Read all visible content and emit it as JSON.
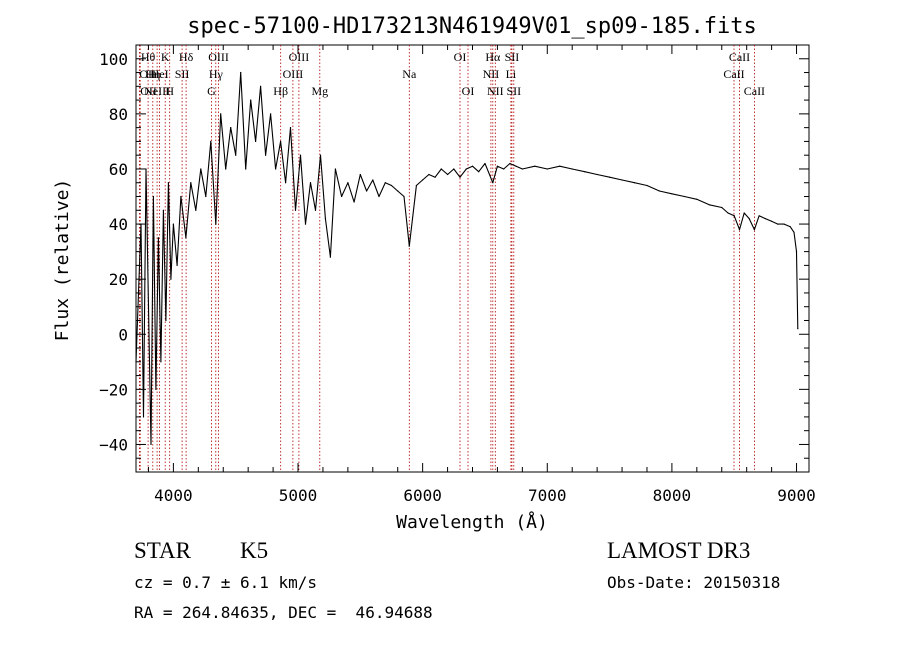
{
  "chart_data": {
    "type": "line",
    "title": "spec-57100-HD173213N461949V01_sp09-185.fits",
    "xlabel": "Wavelength (Å)",
    "ylabel": "Flux (relative)",
    "xlim": [
      3700,
      9100
    ],
    "ylim": [
      -50,
      105
    ],
    "xticks": [
      {
        "value": 4000,
        "label": "4000"
      },
      {
        "value": 5000,
        "label": "5000"
      },
      {
        "value": 6000,
        "label": "6000"
      },
      {
        "value": 7000,
        "label": "7000"
      },
      {
        "value": 8000,
        "label": "8000"
      },
      {
        "value": 9000,
        "label": "9000"
      }
    ],
    "yticks": [
      {
        "value": -40,
        "label": "−40"
      },
      {
        "value": -20,
        "label": "−20"
      },
      {
        "value": 0,
        "label": "0"
      },
      {
        "value": 20,
        "label": "20"
      },
      {
        "value": 40,
        "label": "40"
      },
      {
        "value": 60,
        "label": "60"
      },
      {
        "value": 80,
        "label": "80"
      },
      {
        "value": 100,
        "label": "100"
      }
    ],
    "series": [
      {
        "name": "flux",
        "x": [
          3700,
          3720,
          3740,
          3760,
          3780,
          3800,
          3820,
          3840,
          3860,
          3880,
          3900,
          3920,
          3940,
          3960,
          3980,
          4000,
          4030,
          4060,
          4100,
          4140,
          4180,
          4220,
          4260,
          4300,
          4340,
          4380,
          4420,
          4460,
          4500,
          4540,
          4580,
          4620,
          4660,
          4700,
          4740,
          4780,
          4820,
          4860,
          4900,
          4940,
          4980,
          5020,
          5060,
          5100,
          5140,
          5180,
          5220,
          5260,
          5300,
          5350,
          5400,
          5450,
          5500,
          5550,
          5600,
          5650,
          5700,
          5750,
          5800,
          5850,
          5893,
          5950,
          6000,
          6050,
          6100,
          6150,
          6200,
          6250,
          6300,
          6350,
          6400,
          6450,
          6500,
          6563,
          6600,
          6650,
          6700,
          6750,
          6800,
          6900,
          7000,
          7100,
          7200,
          7300,
          7400,
          7500,
          7600,
          7700,
          7800,
          7900,
          8000,
          8100,
          8200,
          8300,
          8400,
          8450,
          8500,
          8542,
          8580,
          8620,
          8662,
          8700,
          8750,
          8800,
          8850,
          8900,
          8950,
          8980,
          9000,
          9010
        ],
        "y": [
          -10,
          15,
          40,
          -30,
          60,
          10,
          -40,
          50,
          -20,
          35,
          -10,
          45,
          5,
          55,
          20,
          40,
          25,
          50,
          35,
          55,
          45,
          60,
          50,
          70,
          40,
          80,
          60,
          75,
          65,
          95,
          60,
          85,
          70,
          90,
          65,
          80,
          60,
          70,
          55,
          75,
          45,
          65,
          40,
          55,
          45,
          65,
          42,
          28,
          60,
          50,
          55,
          48,
          58,
          52,
          56,
          50,
          55,
          54,
          52,
          50,
          32,
          54,
          56,
          58,
          57,
          60,
          58,
          60,
          57,
          60,
          61,
          59,
          62,
          55,
          61,
          60,
          62,
          61,
          60,
          61,
          60,
          61,
          60,
          59,
          58,
          57,
          56,
          55,
          54,
          52,
          51,
          50,
          49,
          47,
          46,
          44,
          43,
          38,
          44,
          42,
          38,
          43,
          42,
          41,
          40,
          40,
          39,
          37,
          30,
          2
        ]
      }
    ],
    "line_annotations": [
      {
        "wavelength": 3727,
        "label": "OII",
        "tier": 1,
        "anchor": "start"
      },
      {
        "wavelength": 3734,
        "label": "OII",
        "tier": 2,
        "anchor": "start"
      },
      {
        "wavelength": 3797,
        "label": "Hθ",
        "tier": 0,
        "anchor": "middle"
      },
      {
        "wavelength": 3835,
        "label": "Hη",
        "tier": 1,
        "anchor": "middle"
      },
      {
        "wavelength": 3869,
        "label": "NeIII",
        "tier": 2,
        "anchor": "middle"
      },
      {
        "wavelength": 3889,
        "label": "HeI",
        "tier": 1,
        "anchor": "middle"
      },
      {
        "wavelength": 3934,
        "label": "K",
        "tier": 0,
        "anchor": "middle"
      },
      {
        "wavelength": 3970,
        "label": "H",
        "tier": 2,
        "anchor": "middle"
      },
      {
        "wavelength": 4070,
        "label": "SII",
        "tier": 1,
        "anchor": "middle"
      },
      {
        "wavelength": 4102,
        "label": "Hδ",
        "tier": 0,
        "anchor": "middle"
      },
      {
        "wavelength": 4305,
        "label": "G",
        "tier": 2,
        "anchor": "middle"
      },
      {
        "wavelength": 4340,
        "label": "Hγ",
        "tier": 1,
        "anchor": "middle"
      },
      {
        "wavelength": 4363,
        "label": "OIII",
        "tier": 0,
        "anchor": "middle"
      },
      {
        "wavelength": 4861,
        "label": "Hβ",
        "tier": 2,
        "anchor": "middle"
      },
      {
        "wavelength": 4959,
        "label": "OIII",
        "tier": 1,
        "anchor": "middle"
      },
      {
        "wavelength": 5007,
        "label": "OIII",
        "tier": 0,
        "anchor": "middle"
      },
      {
        "wavelength": 5175,
        "label": "Mg",
        "tier": 2,
        "anchor": "middle"
      },
      {
        "wavelength": 5893,
        "label": "Na",
        "tier": 1,
        "anchor": "middle"
      },
      {
        "wavelength": 6300,
        "label": "OI",
        "tier": 0,
        "anchor": "middle"
      },
      {
        "wavelength": 6364,
        "label": "OI",
        "tier": 2,
        "anchor": "middle"
      },
      {
        "wavelength": 6548,
        "label": "NII",
        "tier": 1,
        "anchor": "middle"
      },
      {
        "wavelength": 6563,
        "label": "Hα",
        "tier": 0,
        "anchor": "middle"
      },
      {
        "wavelength": 6583,
        "label": "NII",
        "tier": 2,
        "anchor": "middle"
      },
      {
        "wavelength": 6708,
        "label": "Li",
        "tier": 1,
        "anchor": "middle"
      },
      {
        "wavelength": 6716,
        "label": "SII",
        "tier": 0,
        "anchor": "middle"
      },
      {
        "wavelength": 6731,
        "label": "SII",
        "tier": 2,
        "anchor": "middle"
      },
      {
        "wavelength": 8498,
        "label": "CaII",
        "tier": 1,
        "anchor": "middle"
      },
      {
        "wavelength": 8542,
        "label": "CaII",
        "tier": 0,
        "anchor": "middle"
      },
      {
        "wavelength": 8662,
        "label": "CaII",
        "tier": 2,
        "anchor": "middle"
      }
    ]
  },
  "info": {
    "object_class": "STAR",
    "subclass": "K5",
    "survey": "LAMOST DR3",
    "cz": "cz = 0.7 ± 6.1 km/s",
    "obs_date": "Obs-Date: 20150318",
    "coords": "RA = 264.84635, DEC =  46.94688"
  }
}
